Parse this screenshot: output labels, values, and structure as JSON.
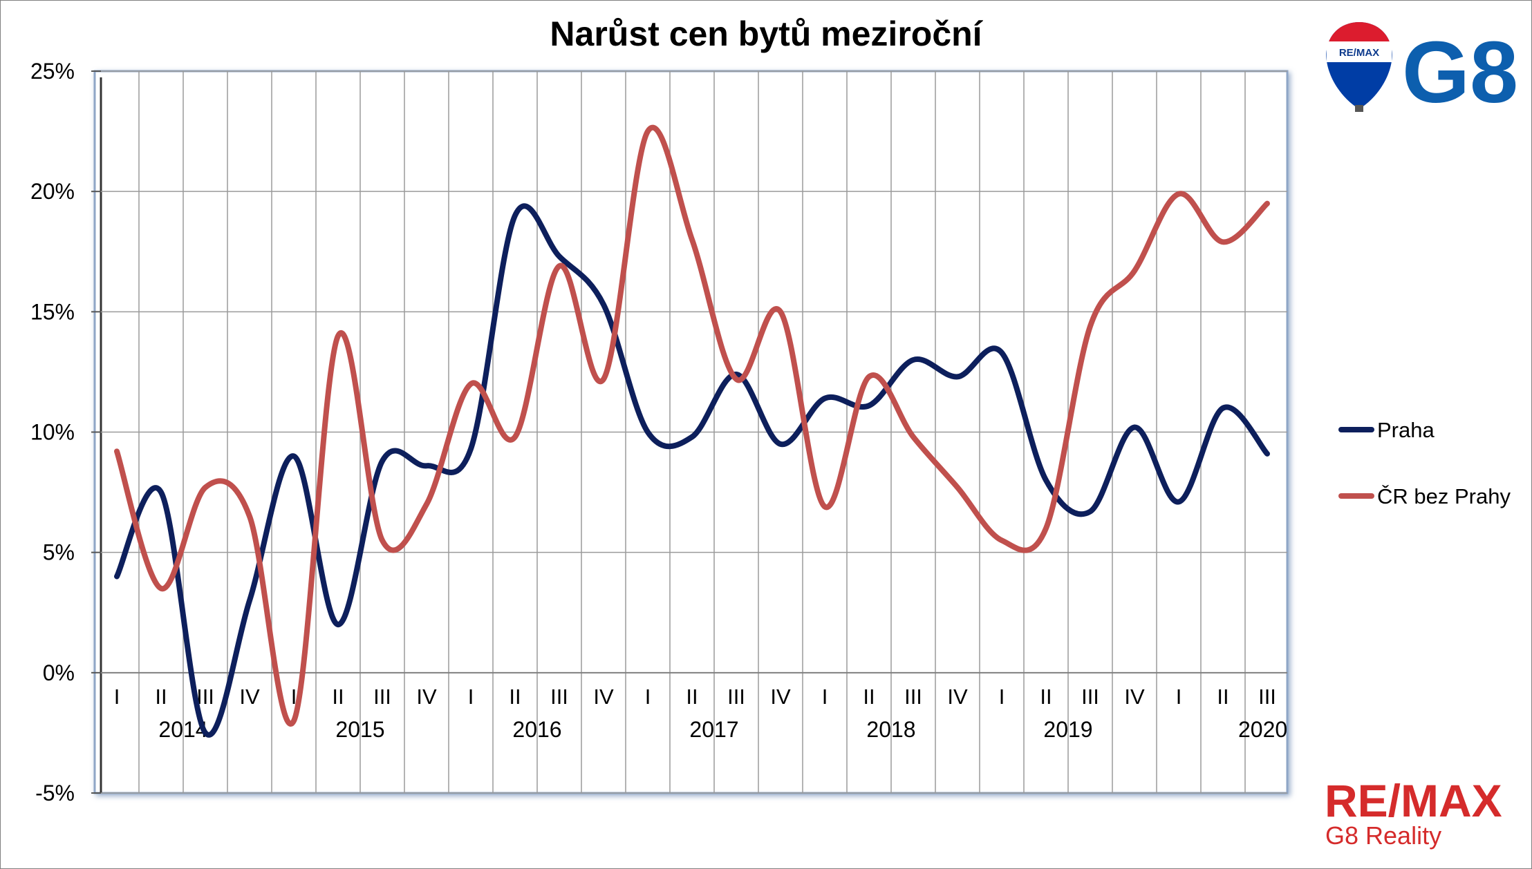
{
  "chart_data": {
    "type": "line",
    "title": "Narůst cen bytů meziroční",
    "ylim": [
      -5,
      25
    ],
    "yticks": [
      -5,
      0,
      5,
      10,
      15,
      20,
      25
    ],
    "ytick_labels": [
      "-5%",
      "0%",
      "5%",
      "10%",
      "15%",
      "20%",
      "25%"
    ],
    "categories": [
      "I",
      "II",
      "III",
      "IV",
      "I",
      "II",
      "III",
      "IV",
      "I",
      "II",
      "III",
      "IV",
      "I",
      "II",
      "III",
      "IV",
      "I",
      "II",
      "III",
      "IV",
      "I",
      "II",
      "III",
      "IV",
      "I",
      "II",
      "III"
    ],
    "years": [
      "2014",
      "2015",
      "2016",
      "2017",
      "2018",
      "2019",
      "2020"
    ],
    "grid": true,
    "legend_position": "right",
    "series": [
      {
        "name": "Praha",
        "color": "#0d1f5c",
        "values": [
          4.0,
          7.5,
          -2.5,
          3.0,
          9.0,
          2.0,
          8.8,
          8.6,
          9.3,
          19.0,
          17.3,
          15.3,
          10.0,
          9.8,
          12.4,
          9.5,
          11.4,
          11.1,
          13.0,
          12.3,
          13.3,
          8.0,
          6.7,
          10.2,
          7.1,
          11.0,
          9.1
        ]
      },
      {
        "name": "ČR bez Prahy",
        "color": "#c0504d",
        "values": [
          9.2,
          3.5,
          7.7,
          6.5,
          -2.0,
          14.0,
          5.5,
          7.0,
          12.0,
          9.8,
          16.9,
          12.2,
          22.5,
          18.0,
          12.2,
          15.0,
          6.9,
          12.3,
          9.8,
          7.7,
          5.5,
          6.0,
          14.4,
          16.7,
          19.9,
          17.9,
          19.5
        ]
      }
    ]
  },
  "branding": {
    "balloon_text": "RE/MAX",
    "g8_text": "G8",
    "remax_text": "RE/MAX",
    "remax_sub": "G8 Reality",
    "colors": {
      "brand_blue": "#0d5fae",
      "brand_red": "#d52b2b",
      "balloon_red": "#dc1c2e",
      "balloon_blue": "#003da5"
    }
  }
}
